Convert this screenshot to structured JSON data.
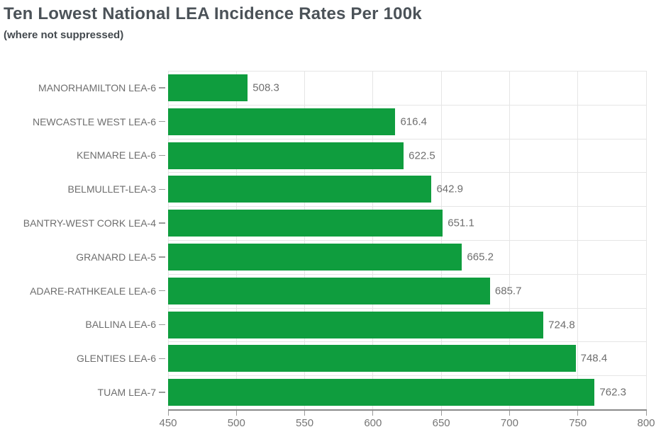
{
  "chart_data": {
    "type": "bar",
    "orientation": "horizontal",
    "title": "Ten Lowest National LEA Incidence Rates Per 100k",
    "subtitle": "(where not suppressed)",
    "categories": [
      "MANORHAMILTON LEA-6",
      "NEWCASTLE WEST LEA-6",
      "KENMARE LEA-6",
      "BELMULLET-LEA-3",
      "BANTRY-WEST CORK LEA-4",
      "GRANARD LEA-5",
      "ADARE-RATHKEALE LEA-6",
      "BALLINA LEA-6",
      "GLENTIES LEA-6",
      "TUAM LEA-7"
    ],
    "values": [
      508.3,
      616.4,
      622.5,
      642.9,
      651.1,
      665.2,
      685.7,
      724.8,
      748.4,
      762.3
    ],
    "value_labels": [
      "508.3",
      "616.4",
      "622.5",
      "642.9",
      "651.1",
      "665.2",
      "685.7",
      "724.8",
      "748.4",
      "762.3"
    ],
    "xlim": [
      450,
      800
    ],
    "x_ticks": [
      "450",
      "500",
      "550",
      "600",
      "650",
      "700",
      "750",
      "800"
    ],
    "xlabel": "",
    "ylabel": "",
    "grid": true,
    "legend_position": "none",
    "colors": {
      "bar": "#0f9d3e",
      "grid": "#e5e5e5",
      "axis_line": "#8a8a8a",
      "tick_mark": "#9a9a9a",
      "tick_label": "#767676",
      "category_label": "#6e6e6e",
      "value_label": "#6e6e6e",
      "title": "#4b5258",
      "subtitle": "#43494e"
    }
  }
}
